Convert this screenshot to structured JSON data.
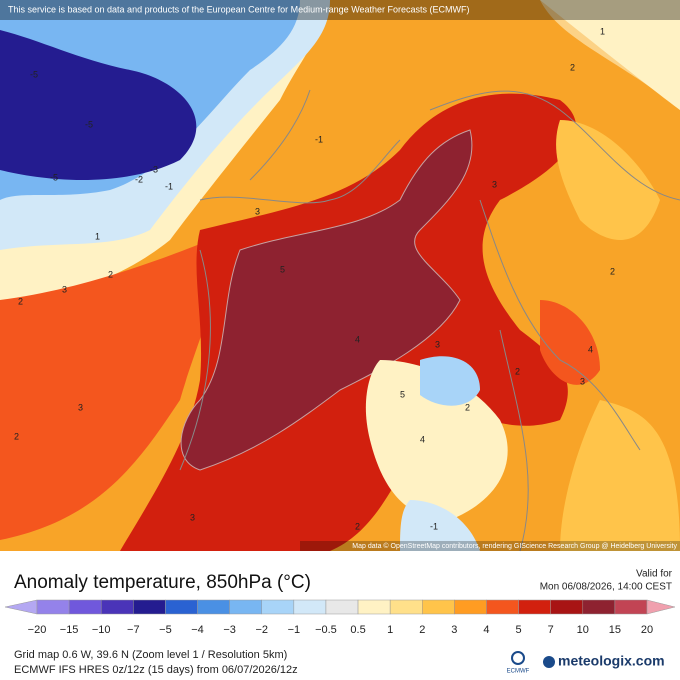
{
  "banner": "This service is based on data and products of the European Centre for Medium-range Weather Forecasts (ECMWF)",
  "attribution": "Map data © OpenStreetMap contributors, rendering GIScience Research Group @ Heidelberg University",
  "map_labels": [
    "-5",
    "-5",
    "-5",
    "-3",
    "-2",
    "-1",
    "-1",
    "1",
    "2",
    "2",
    "3",
    "3",
    "3",
    "4",
    "5",
    "5",
    "4",
    "3",
    "2",
    "2",
    "3",
    "2",
    "1",
    "-1",
    "2",
    "3",
    "2",
    "4",
    "3",
    "2"
  ],
  "title": "Anomaly temperature, 850hPa (°C)",
  "valid_label": "Valid for",
  "valid_time": "Mon 06/08/2026, 14:00 CEST",
  "legend": {
    "labels": [
      "−20",
      "−15",
      "−10",
      "−7",
      "−5",
      "−4",
      "−3",
      "−2",
      "−1",
      "−0.5",
      "0.5",
      "1",
      "2",
      "3",
      "4",
      "5",
      "7",
      "10",
      "15",
      "20"
    ],
    "colors": [
      "#b4a8f2",
      "#9482ea",
      "#7058dc",
      "#4a34b8",
      "#241c90",
      "#2a62d2",
      "#4a90e4",
      "#78b6f2",
      "#a8d4f8",
      "#d2e8f8",
      "#e8e8e8",
      "#fff2c4",
      "#ffe08a",
      "#ffc44a",
      "#ff9c22",
      "#f4561e",
      "#d2200e",
      "#a81414",
      "#8e2230",
      "#c24454",
      "#f0a0ae"
    ]
  },
  "footer": {
    "line1": "Grid map 0.6 W, 39.6 N (Zoom level 1 / Resolution 5km)",
    "line2": "ECMWF IFS HRES 0z/12z (15 days) from 06/07/2026/12z",
    "ecmwf": "ECMWF",
    "brand": "meteologix.com"
  }
}
